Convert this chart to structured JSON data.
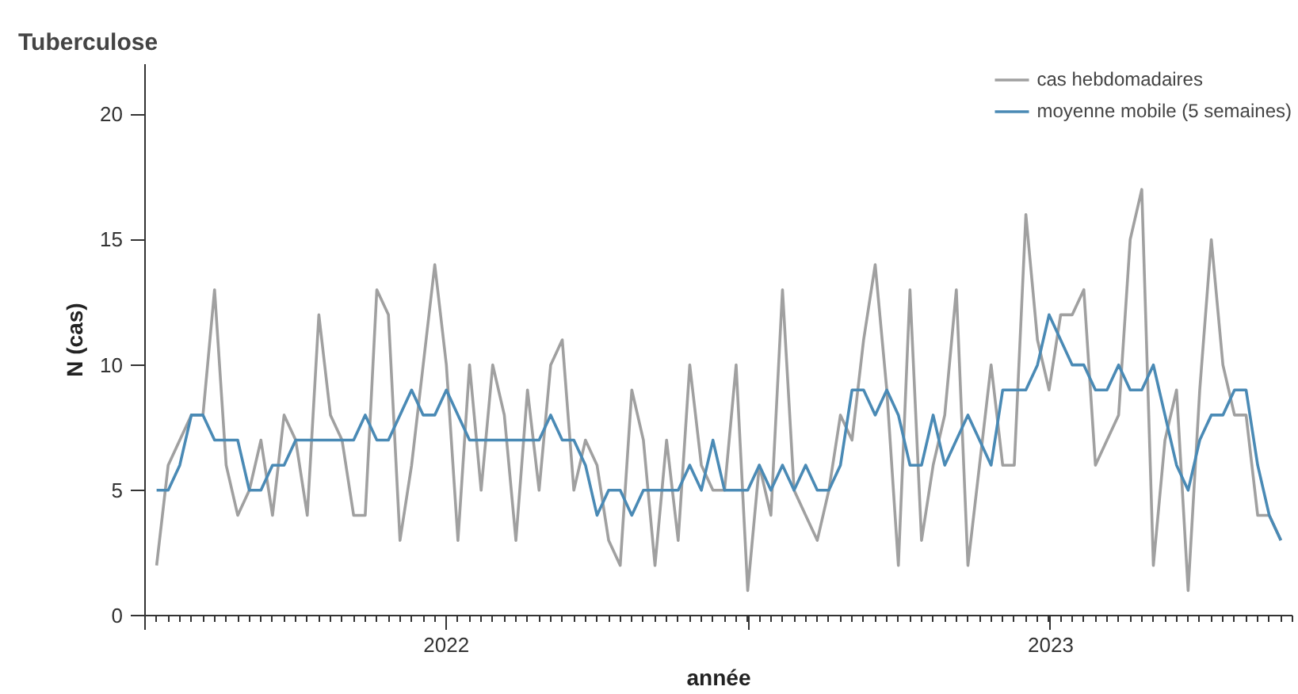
{
  "chart_data": {
    "type": "line",
    "title": "Tuberculose",
    "xlabel": "année",
    "ylabel": "N (cas)",
    "x": [
      "2022-01-08",
      "2022-01-15",
      "2022-01-22",
      "2022-01-29",
      "2022-02-05",
      "2022-02-12",
      "2022-02-19",
      "2022-02-26",
      "2022-03-05",
      "2022-03-12",
      "2022-03-19",
      "2022-03-26",
      "2022-04-02",
      "2022-04-09",
      "2022-04-16",
      "2022-04-23",
      "2022-04-30",
      "2022-05-07",
      "2022-05-14",
      "2022-05-21",
      "2022-05-28",
      "2022-06-04",
      "2022-06-11",
      "2022-06-18",
      "2022-06-25",
      "2022-07-02",
      "2022-07-09",
      "2022-07-16",
      "2022-07-23",
      "2022-07-30",
      "2022-08-06",
      "2022-08-13",
      "2022-08-20",
      "2022-08-27",
      "2022-09-03",
      "2022-09-10",
      "2022-09-17",
      "2022-09-24",
      "2022-10-01",
      "2022-10-08",
      "2022-10-15",
      "2022-10-22",
      "2022-10-29",
      "2022-11-05",
      "2022-11-12",
      "2022-11-19",
      "2022-11-26",
      "2022-12-03",
      "2022-12-10",
      "2022-12-17",
      "2022-12-24",
      "2022-12-31",
      "2023-01-07",
      "2023-01-14",
      "2023-01-21",
      "2023-01-28",
      "2023-02-04",
      "2023-02-11",
      "2023-02-18",
      "2023-02-25",
      "2023-03-04",
      "2023-03-11",
      "2023-03-18",
      "2023-03-25",
      "2023-04-01",
      "2023-04-08",
      "2023-04-15",
      "2023-04-22",
      "2023-04-29",
      "2023-05-06",
      "2023-05-13",
      "2023-05-20",
      "2023-05-27",
      "2023-06-03",
      "2023-06-10",
      "2023-06-17",
      "2023-06-24",
      "2023-07-01",
      "2023-07-08",
      "2023-07-15",
      "2023-07-22",
      "2023-07-29",
      "2023-08-05",
      "2023-08-12",
      "2023-08-19",
      "2023-08-26",
      "2023-09-02",
      "2023-09-09",
      "2023-09-16",
      "2023-09-23",
      "2023-09-30",
      "2023-10-07",
      "2023-10-14",
      "2023-10-21",
      "2023-10-28",
      "2023-11-04",
      "2023-11-11",
      "2023-11-18"
    ],
    "xlim": [
      "2022-01-01",
      "2023-11-25"
    ],
    "xticks": [
      {
        "value": "2022-01-01",
        "label": null
      },
      {
        "value": "2022-07-02",
        "label": "2022"
      },
      {
        "value": "2023-01-01",
        "label": null
      },
      {
        "value": "2023-07-02",
        "label": "2023"
      }
    ],
    "ylim": [
      0,
      22
    ],
    "yticks": [
      0,
      5,
      10,
      15,
      20
    ],
    "grid": false,
    "legend": "top right",
    "marker": "none",
    "line_style": "solid",
    "series": [
      {
        "name": "cas hebdomadaires",
        "color": "#a0a0a0",
        "values": [
          2,
          6,
          7,
          8,
          8,
          13,
          6,
          4,
          5,
          7,
          4,
          8,
          7,
          4,
          12,
          8,
          7,
          4,
          4,
          13,
          12,
          3,
          6,
          10,
          14,
          10,
          3,
          10,
          5,
          10,
          8,
          3,
          9,
          5,
          10,
          11,
          5,
          7,
          6,
          3,
          2,
          9,
          7,
          2,
          7,
          3,
          10,
          6,
          5,
          5,
          10,
          1,
          6,
          4,
          13,
          5,
          4,
          3,
          5,
          8,
          7,
          11,
          14,
          9,
          2,
          13,
          3,
          6,
          8,
          13,
          2,
          6,
          10,
          6,
          6,
          16,
          11,
          9,
          12,
          12,
          13,
          6,
          7,
          8,
          15,
          17,
          2,
          7,
          9,
          1,
          9,
          15,
          10,
          8,
          8,
          4,
          4,
          3
        ]
      },
      {
        "name": "moyenne mobile (5 semaines)",
        "color": "#4a8ab5",
        "values": [
          5,
          5,
          6,
          8,
          8,
          7,
          7,
          7,
          5,
          5,
          6,
          6,
          7,
          7,
          7,
          7,
          7,
          7,
          8,
          7,
          7,
          8,
          9,
          8,
          8,
          9,
          8,
          7,
          7,
          7,
          7,
          7,
          7,
          7,
          8,
          7,
          7,
          6,
          4,
          5,
          5,
          4,
          5,
          5,
          5,
          5,
          6,
          5,
          7,
          5,
          5,
          5,
          6,
          5,
          6,
          5,
          6,
          5,
          5,
          6,
          9,
          9,
          8,
          9,
          8,
          6,
          6,
          8,
          6,
          7,
          8,
          7,
          6,
          9,
          9,
          9,
          10,
          12,
          11,
          10,
          10,
          9,
          9,
          10,
          9,
          9,
          10,
          8,
          6,
          5,
          7,
          8,
          8,
          9,
          9,
          6,
          4,
          3
        ]
      }
    ]
  }
}
